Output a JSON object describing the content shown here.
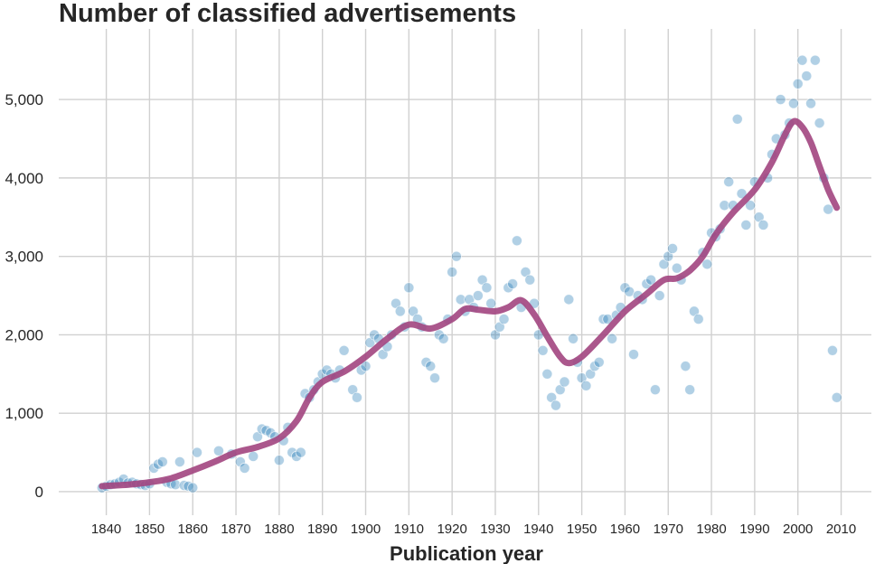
{
  "chart_data": {
    "type": "scatter",
    "title": "Number of classified advertisements",
    "xlabel": "Publication year",
    "ylabel": "",
    "xlim": [
      1829,
      2017
    ],
    "ylim": [
      -300,
      5900
    ],
    "x_ticks": [
      1840,
      1850,
      1860,
      1870,
      1880,
      1890,
      1900,
      1910,
      1920,
      1930,
      1940,
      1950,
      1960,
      1970,
      1980,
      1990,
      2000,
      2010
    ],
    "x_tick_labels": [
      "1840",
      "1850",
      "1860",
      "1870",
      "1880",
      "1890",
      "1900",
      "1910",
      "1920",
      "1930",
      "1940",
      "1950",
      "1960",
      "1970",
      "1980",
      "1990",
      "2000",
      "2010"
    ],
    "y_ticks": [
      0,
      1000,
      2000,
      3000,
      4000,
      5000
    ],
    "y_tick_labels": [
      "0",
      "1,000",
      "2,000",
      "3,000",
      "4,000",
      "5,000"
    ],
    "grid": true,
    "colors": {
      "points": "#1f77b4",
      "trend": "#a2457f"
    },
    "series": [
      {
        "kind": "scatter",
        "x": [
          1839,
          1840,
          1841,
          1842,
          1843,
          1844,
          1845,
          1846,
          1847,
          1848,
          1849,
          1850,
          1851,
          1852,
          1853,
          1854,
          1855,
          1856,
          1857,
          1858,
          1859,
          1860,
          1861,
          1866,
          1869,
          1871,
          1872,
          1874,
          1875,
          1876,
          1877,
          1878,
          1879,
          1880,
          1881,
          1882,
          1883,
          1884,
          1885,
          1886,
          1887,
          1888,
          1889,
          1890,
          1891,
          1892,
          1893,
          1894,
          1895,
          1897,
          1898,
          1899,
          1900,
          1901,
          1902,
          1903,
          1904,
          1905,
          1906,
          1907,
          1908,
          1909,
          1910,
          1911,
          1912,
          1913,
          1914,
          1915,
          1916,
          1917,
          1918,
          1919,
          1920,
          1921,
          1922,
          1923,
          1924,
          1925,
          1926,
          1927,
          1928,
          1929,
          1930,
          1931,
          1932,
          1933,
          1934,
          1935,
          1936,
          1937,
          1938,
          1939,
          1940,
          1941,
          1942,
          1943,
          1944,
          1945,
          1946,
          1947,
          1948,
          1949,
          1950,
          1951,
          1952,
          1953,
          1954,
          1955,
          1956,
          1957,
          1958,
          1959,
          1960,
          1961,
          1962,
          1963,
          1964,
          1965,
          1966,
          1967,
          1968,
          1969,
          1970,
          1971,
          1972,
          1973,
          1974,
          1975,
          1976,
          1977,
          1978,
          1979,
          1980,
          1981,
          1982,
          1983,
          1984,
          1985,
          1986,
          1987,
          1988,
          1989,
          1990,
          1991,
          1992,
          1993,
          1994,
          1995,
          1996,
          1997,
          1998,
          1999,
          2000,
          2001,
          2002,
          2003,
          2004,
          2005,
          2006,
          2007,
          2008,
          2009
        ],
        "y": [
          50,
          70,
          90,
          100,
          120,
          160,
          110,
          120,
          100,
          90,
          80,
          100,
          300,
          350,
          380,
          120,
          100,
          90,
          380,
          80,
          70,
          50,
          500,
          520,
          480,
          380,
          300,
          450,
          700,
          800,
          780,
          750,
          700,
          400,
          650,
          820,
          500,
          450,
          500,
          1250,
          1200,
          1300,
          1400,
          1500,
          1550,
          1500,
          1450,
          1550,
          1800,
          1300,
          1200,
          1550,
          1600,
          1900,
          2000,
          1950,
          1750,
          1850,
          2000,
          2400,
          2300,
          2100,
          2600,
          2300,
          2200,
          2100,
          1650,
          1600,
          1450,
          2000,
          1950,
          2200,
          2800,
          3000,
          2450,
          2300,
          2450,
          2350,
          2500,
          2700,
          2600,
          2400,
          2000,
          2100,
          2200,
          2600,
          2650,
          3200,
          2350,
          2800,
          2700,
          2400,
          2000,
          1800,
          1500,
          1200,
          1100,
          1300,
          1400,
          2450,
          1950,
          1650,
          1450,
          1350,
          1500,
          1600,
          1650,
          2200,
          2200,
          1950,
          2250,
          2350,
          2600,
          2550,
          1750,
          2500,
          2450,
          2650,
          2700,
          1300,
          2500,
          2900,
          3000,
          3100,
          2850,
          2700,
          1600,
          1300,
          2300,
          2200,
          3050,
          2900,
          3300,
          3250,
          3350,
          3650,
          3950,
          3650,
          4750,
          3800,
          3400,
          3650,
          3950,
          3500,
          3400,
          4000,
          4300,
          4500,
          5000,
          4550,
          4700,
          4950,
          5200,
          5500,
          5300,
          4950,
          5500,
          4700,
          4000,
          3600,
          1800,
          1200
        ]
      },
      {
        "kind": "line",
        "name": "",
        "x": [
          1839,
          1845,
          1850,
          1855,
          1860,
          1865,
          1870,
          1875,
          1880,
          1884,
          1887,
          1890,
          1895,
          1900,
          1905,
          1910,
          1915,
          1920,
          1923,
          1926,
          1930,
          1933,
          1936,
          1939,
          1942,
          1945,
          1947,
          1950,
          1955,
          1960,
          1965,
          1969,
          1972,
          1975,
          1978,
          1981,
          1985,
          1990,
          1994,
          1997,
          1999,
          2001,
          2003,
          2005,
          2007,
          2009
        ],
        "y": [
          70,
          90,
          120,
          170,
          270,
          380,
          500,
          570,
          680,
          900,
          1200,
          1400,
          1530,
          1720,
          1950,
          2130,
          2080,
          2200,
          2330,
          2320,
          2300,
          2350,
          2440,
          2260,
          1980,
          1720,
          1640,
          1720,
          2000,
          2300,
          2520,
          2700,
          2720,
          2820,
          3000,
          3280,
          3560,
          3850,
          4200,
          4550,
          4720,
          4650,
          4450,
          4150,
          3850,
          3620
        ]
      }
    ]
  }
}
